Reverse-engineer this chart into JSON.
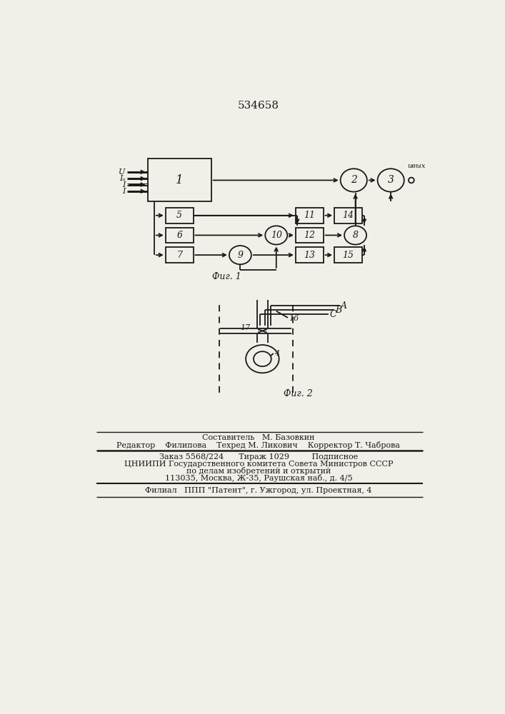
{
  "title": "534658",
  "fig1_caption": "Фиг. 1",
  "fig2_caption": "Фиг. 2",
  "bg_color": "#f2efe9",
  "line_color": "#1a1a1a",
  "footer_lines": [
    "Составитель   М. Базовкин",
    "Редактор    Филипова    Техред М. Ликович    Корректор Т. Чаброва",
    "Заказ 5568/224      Тираж 1029         Подписное",
    "ЦНИИПИ Государственного комитета Совета Министров СССР",
    "по делам изобретений и открытий",
    "113035, Москва, Ж-35, Раушская наб., д. 4/5",
    "Филиал   ППП \"Патент\", г. Ужгород, ул. Проектная, 4"
  ]
}
